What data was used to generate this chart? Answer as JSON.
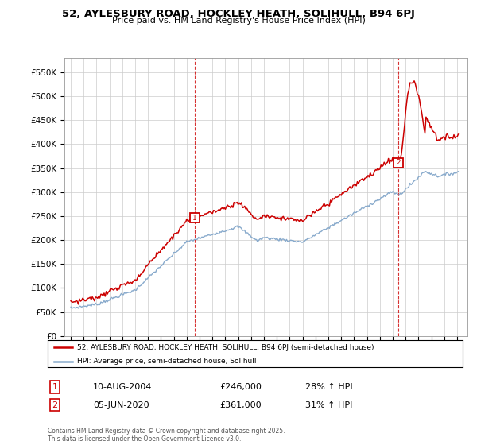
{
  "title": "52, AYLESBURY ROAD, HOCKLEY HEATH, SOLIHULL, B94 6PJ",
  "subtitle": "Price paid vs. HM Land Registry's House Price Index (HPI)",
  "legend_line1": "52, AYLESBURY ROAD, HOCKLEY HEATH, SOLIHULL, B94 6PJ (semi-detached house)",
  "legend_line2": "HPI: Average price, semi-detached house, Solihull",
  "annotation1_date": "10-AUG-2004",
  "annotation1_price": "£246,000",
  "annotation1_hpi": "28% ↑ HPI",
  "annotation2_date": "05-JUN-2020",
  "annotation2_price": "£361,000",
  "annotation2_hpi": "31% ↑ HPI",
  "footer": "Contains HM Land Registry data © Crown copyright and database right 2025.\nThis data is licensed under the Open Government Licence v3.0.",
  "price_color": "#cc0000",
  "hpi_color": "#88aacc",
  "annotation_color": "#cc0000",
  "ylim_max": 580000,
  "yticks": [
    0,
    50000,
    100000,
    150000,
    200000,
    250000,
    300000,
    350000,
    400000,
    450000,
    500000,
    550000
  ],
  "ytick_labels": [
    "£0",
    "£50K",
    "£100K",
    "£150K",
    "£200K",
    "£250K",
    "£300K",
    "£350K",
    "£400K",
    "£450K",
    "£500K",
    "£550K"
  ],
  "purchase1_year": 2004.617,
  "purchase1_price": 246000,
  "purchase2_year": 2020.42,
  "purchase2_price": 361000,
  "bg_color": "#ffffff",
  "grid_color": "#cccccc",
  "xmin": 1994.5,
  "xmax": 2025.8
}
